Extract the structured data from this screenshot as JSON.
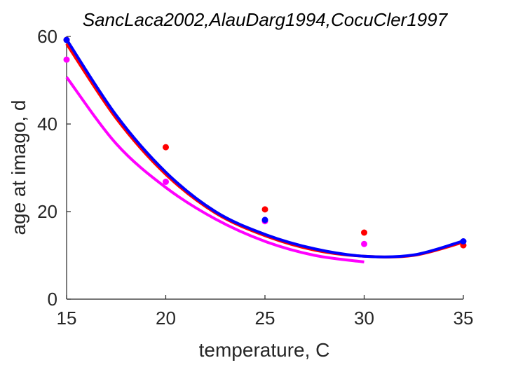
{
  "chart_data": {
    "type": "scatter",
    "title": "SancLaca2002,AlauDarg1994,CocuCler1997",
    "xlabel": "temperature, C",
    "ylabel": "age at imago, d",
    "xlim": [
      15,
      35
    ],
    "ylim": [
      0,
      60
    ],
    "xticks": [
      "15",
      "20",
      "25",
      "30",
      "35"
    ],
    "yticks": [
      "0",
      "20",
      "40",
      "60"
    ],
    "grid": false,
    "legend": "none",
    "series": [
      {
        "color": "#ff0000",
        "points": {
          "x": [
            15,
            20,
            25,
            30,
            35
          ],
          "y": [
            59.2,
            34.7,
            20.5,
            15.2,
            12.3
          ]
        },
        "curve": {
          "x": [
            15,
            17.5,
            20,
            22.5,
            25,
            27.5,
            30,
            32.5,
            35
          ],
          "y": [
            58.3,
            41.3,
            28.5,
            19.7,
            14.5,
            11.2,
            9.8,
            10.0,
            13.0
          ]
        }
      },
      {
        "color": "#ff00ff",
        "points": {
          "x": [
            15,
            20,
            25,
            30
          ],
          "y": [
            54.7,
            26.8,
            17.8,
            12.6
          ]
        },
        "curve": {
          "x": [
            15,
            17.5,
            20,
            22.5,
            25,
            27.5,
            30
          ],
          "y": [
            50.7,
            35.5,
            25.5,
            18.3,
            13.2,
            10.0,
            8.5
          ]
        }
      },
      {
        "color": "#0000ff",
        "points": {
          "x": [
            15,
            25,
            35
          ],
          "y": [
            59.2,
            18.1,
            13.2
          ]
        },
        "curve": {
          "x": [
            15,
            17.5,
            20,
            22.5,
            25,
            27.5,
            30,
            32.5,
            35
          ],
          "y": [
            59.3,
            42.0,
            29.0,
            20.0,
            14.8,
            11.5,
            9.8,
            10.1,
            13.3
          ]
        }
      }
    ]
  }
}
